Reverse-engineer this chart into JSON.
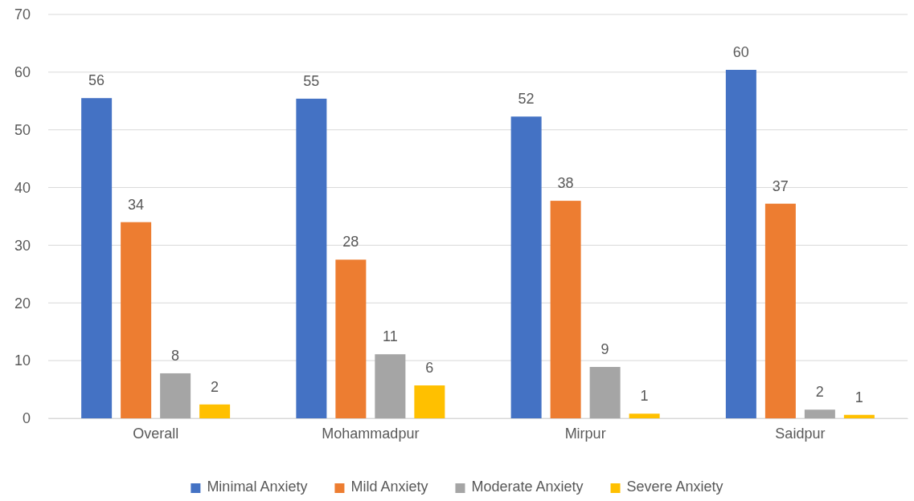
{
  "chart_data": {
    "type": "bar",
    "categories": [
      "Overall",
      "Mohammadpur",
      "Mirpur",
      "Saidpur"
    ],
    "series": [
      {
        "name": "Minimal Anxiety",
        "color": "#4472c4",
        "values": [
          55.5,
          55.4,
          52.3,
          60.4
        ],
        "value_labels": [
          "56",
          "55",
          "52",
          "60"
        ]
      },
      {
        "name": "Mild Anxiety",
        "color": "#ed7d31",
        "values": [
          34,
          27.5,
          37.7,
          37.2
        ],
        "value_labels": [
          "34",
          "28",
          "38",
          "37"
        ]
      },
      {
        "name": "Moderate Anxiety",
        "color": "#a5a5a5",
        "values": [
          7.8,
          11.1,
          8.9,
          1.5
        ],
        "value_labels": [
          "8",
          "11",
          "9",
          "2"
        ]
      },
      {
        "name": "Severe Anxiety",
        "color": "#ffc000",
        "values": [
          2.4,
          5.7,
          0.8,
          0.6
        ],
        "value_labels": [
          "2",
          "6",
          "1",
          "1"
        ]
      }
    ],
    "ylim": [
      0,
      70
    ],
    "yticks": [
      0,
      10,
      20,
      30,
      40,
      50,
      60,
      70
    ],
    "grid": "y",
    "legend": "bottom"
  }
}
